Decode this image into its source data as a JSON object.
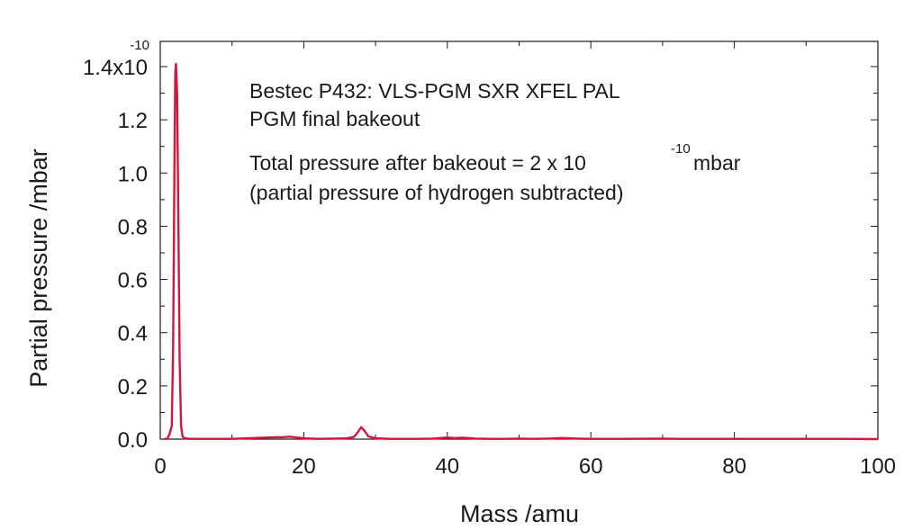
{
  "chart_data": {
    "type": "line",
    "xlabel": "Mass /amu",
    "ylabel": "Partial pressure /mbar",
    "xlim": [
      0,
      100
    ],
    "ylim": [
      0,
      1.4
    ],
    "x_ticks": [
      "0",
      "20",
      "40",
      "60",
      "80",
      "100"
    ],
    "y_ticks": [
      "0.0",
      "0.2",
      "0.4",
      "0.6",
      "0.8",
      "1.0",
      "1.2"
    ],
    "y_top_label": {
      "mantissa": "1.4x10",
      "exponent": "-10"
    },
    "annotations": {
      "line1": "Bestec P432: VLS-PGM SXR XFEL PAL",
      "line2": "PGM final bakeout",
      "line3_prefix": "Total pressure after bakeout = 2 x 10",
      "line3_exponent": "-10",
      "line3_suffix": " mbar",
      "line4": "(partial pressure of hydrogen subtracted)"
    },
    "series": [
      {
        "color": "#d4163c",
        "x": [
          0.5,
          1.0,
          1.3,
          1.6,
          1.8,
          2.0,
          2.1,
          2.2,
          2.35,
          2.5,
          2.7,
          2.9,
          3.1,
          3.4,
          4,
          6,
          8,
          10,
          12,
          13,
          14,
          15,
          16,
          17,
          18,
          19,
          20,
          22,
          24,
          26,
          27,
          27.5,
          28,
          28.5,
          29,
          30,
          32,
          34,
          36,
          38,
          39,
          40,
          41,
          42,
          43,
          44,
          46,
          48,
          50,
          52,
          54,
          55,
          56,
          57,
          58,
          60,
          65,
          70,
          72,
          75,
          80,
          85,
          90,
          95,
          100
        ],
        "y": [
          0.0,
          0.002,
          0.02,
          0.05,
          0.35,
          1.1,
          1.38,
          1.41,
          1.3,
          0.9,
          0.3,
          0.05,
          0.01,
          0.003,
          0.001,
          0.001,
          0.001,
          0.001,
          0.003,
          0.004,
          0.005,
          0.006,
          0.007,
          0.007,
          0.009,
          0.006,
          0.003,
          0.001,
          0.002,
          0.003,
          0.008,
          0.025,
          0.045,
          0.03,
          0.01,
          0.003,
          0.001,
          0.001,
          0.001,
          0.002,
          0.004,
          0.006,
          0.004,
          0.005,
          0.004,
          0.002,
          0.001,
          0.001,
          0.002,
          0.001,
          0.002,
          0.003,
          0.004,
          0.003,
          0.002,
          0.001,
          0.001,
          0.002,
          0.001,
          0.001,
          0.001,
          0.001,
          0.001,
          0.001,
          0.0
        ]
      }
    ]
  }
}
